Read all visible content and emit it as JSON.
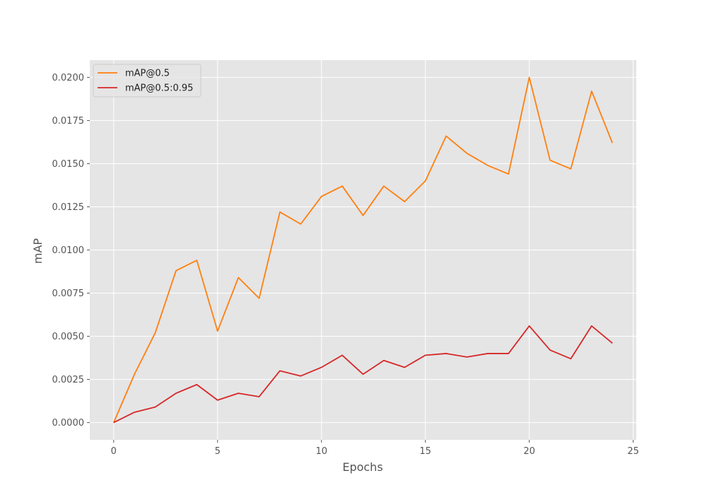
{
  "chart_data": {
    "type": "line",
    "xlabel": "Epochs",
    "ylabel": "mAP",
    "xlim": [
      -1.15,
      25.15
    ],
    "ylim": [
      -0.001,
      0.021
    ],
    "grid": true,
    "legend_position": "top-left",
    "x_ticks": [
      0,
      5,
      10,
      15,
      20,
      25
    ],
    "x_tick_labels": [
      "0",
      "5",
      "10",
      "15",
      "20",
      "25"
    ],
    "y_ticks": [
      0,
      0.0025,
      0.005,
      0.0075,
      0.01,
      0.0125,
      0.015,
      0.0175,
      0.02
    ],
    "y_tick_labels": [
      "0.0000",
      "0.0025",
      "0.0050",
      "0.0075",
      "0.0100",
      "0.0125",
      "0.0150",
      "0.0175",
      "0.0200"
    ],
    "x": [
      0,
      1,
      2,
      3,
      4,
      5,
      6,
      7,
      8,
      9,
      10,
      11,
      12,
      13,
      14,
      15,
      16,
      17,
      18,
      19,
      20,
      21,
      22,
      23,
      24
    ],
    "series": [
      {
        "name": "mAP@0.5",
        "color": "#ff7f0e",
        "values": [
          0.0,
          0.0028,
          0.0052,
          0.0088,
          0.0094,
          0.0053,
          0.0084,
          0.0072,
          0.0122,
          0.0115,
          0.0131,
          0.0137,
          0.012,
          0.0137,
          0.0128,
          0.014,
          0.0166,
          0.0156,
          0.0149,
          0.0144,
          0.02,
          0.0152,
          0.0147,
          0.0192,
          0.0162
        ]
      },
      {
        "name": "mAP@0.5:0.95",
        "color": "#d62728",
        "values": [
          0.0,
          0.0006,
          0.0009,
          0.0017,
          0.0022,
          0.0013,
          0.0017,
          0.0015,
          0.003,
          0.0027,
          0.0032,
          0.0039,
          0.0028,
          0.0036,
          0.0032,
          0.0039,
          0.004,
          0.0038,
          0.004,
          0.004,
          0.0056,
          0.0042,
          0.0037,
          0.0056,
          0.0046
        ]
      }
    ]
  },
  "style": {
    "plot_background": "#e5e5e5",
    "grid_color": "#ffffff",
    "text_color": "#555555"
  }
}
